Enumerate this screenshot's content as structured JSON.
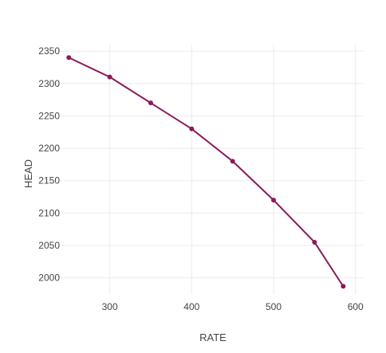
{
  "chart_data": {
    "type": "line",
    "title": "",
    "xlabel": "RATE",
    "ylabel": "HEAD",
    "xlim": [
      240,
      610
    ],
    "ylim": [
      1975,
      2360
    ],
    "xticks": [
      300,
      400,
      500,
      600
    ],
    "yticks": [
      2000,
      2050,
      2100,
      2150,
      2200,
      2250,
      2300,
      2350
    ],
    "grid": true,
    "legend": "none",
    "series": [
      {
        "color": "#8a1a5c",
        "points": [
          {
            "x": 250,
            "y": 2340
          },
          {
            "x": 300,
            "y": 2310
          },
          {
            "x": 350,
            "y": 2270
          },
          {
            "x": 400,
            "y": 2230
          },
          {
            "x": 450,
            "y": 2180
          },
          {
            "x": 500,
            "y": 2120
          },
          {
            "x": 550,
            "y": 2055
          },
          {
            "x": 585,
            "y": 1987
          }
        ]
      }
    ]
  }
}
